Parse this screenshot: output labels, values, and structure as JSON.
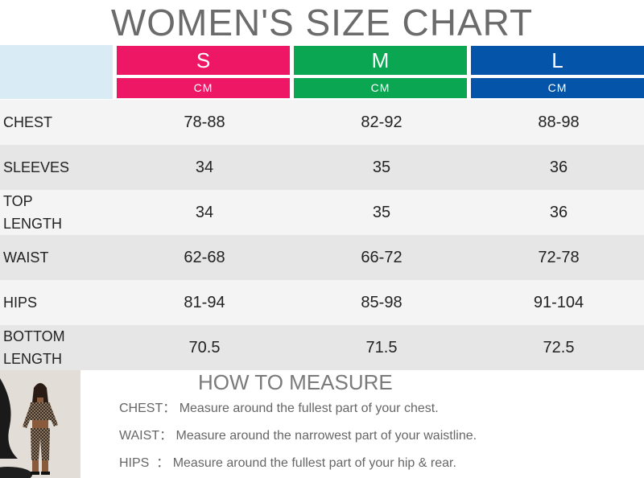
{
  "title": "WOMEN'S SIZE CHART",
  "sizes": [
    {
      "label": "S",
      "unit": "CM",
      "color": "#ee1765"
    },
    {
      "label": "M",
      "unit": "CM",
      "color": "#0aa651"
    },
    {
      "label": "L",
      "unit": "CM",
      "color": "#0454a9"
    }
  ],
  "rows": [
    {
      "label_lines": [
        "CHEST"
      ],
      "values": [
        "78-88",
        "82-92",
        "88-98"
      ]
    },
    {
      "label_lines": [
        "SLEEVES"
      ],
      "values": [
        "34",
        "35",
        "36"
      ]
    },
    {
      "label_lines": [
        "TOP",
        "LENGTH"
      ],
      "values": [
        "34",
        "35",
        "36"
      ]
    },
    {
      "label_lines": [
        "WAIST"
      ],
      "values": [
        "62-68",
        "66-72",
        "72-78"
      ]
    },
    {
      "label_lines": [
        "HIPS"
      ],
      "values": [
        "81-94",
        "85-98",
        "91-104"
      ]
    },
    {
      "label_lines": [
        "BOTTOM",
        "LENGTH"
      ],
      "values": [
        "70.5",
        "71.5",
        "72.5"
      ]
    }
  ],
  "how_to": {
    "title": "HOW TO MEASURE",
    "items": [
      {
        "label": "CHEST：",
        "text": "Measure around the fullest part of your chest."
      },
      {
        "label": "WAIST：",
        "text": "Measure around the narrowest part of your waistline."
      },
      {
        "label": "HIPS  ：",
        "text": "Measure around the fullest part of your hip & rear."
      }
    ]
  }
}
